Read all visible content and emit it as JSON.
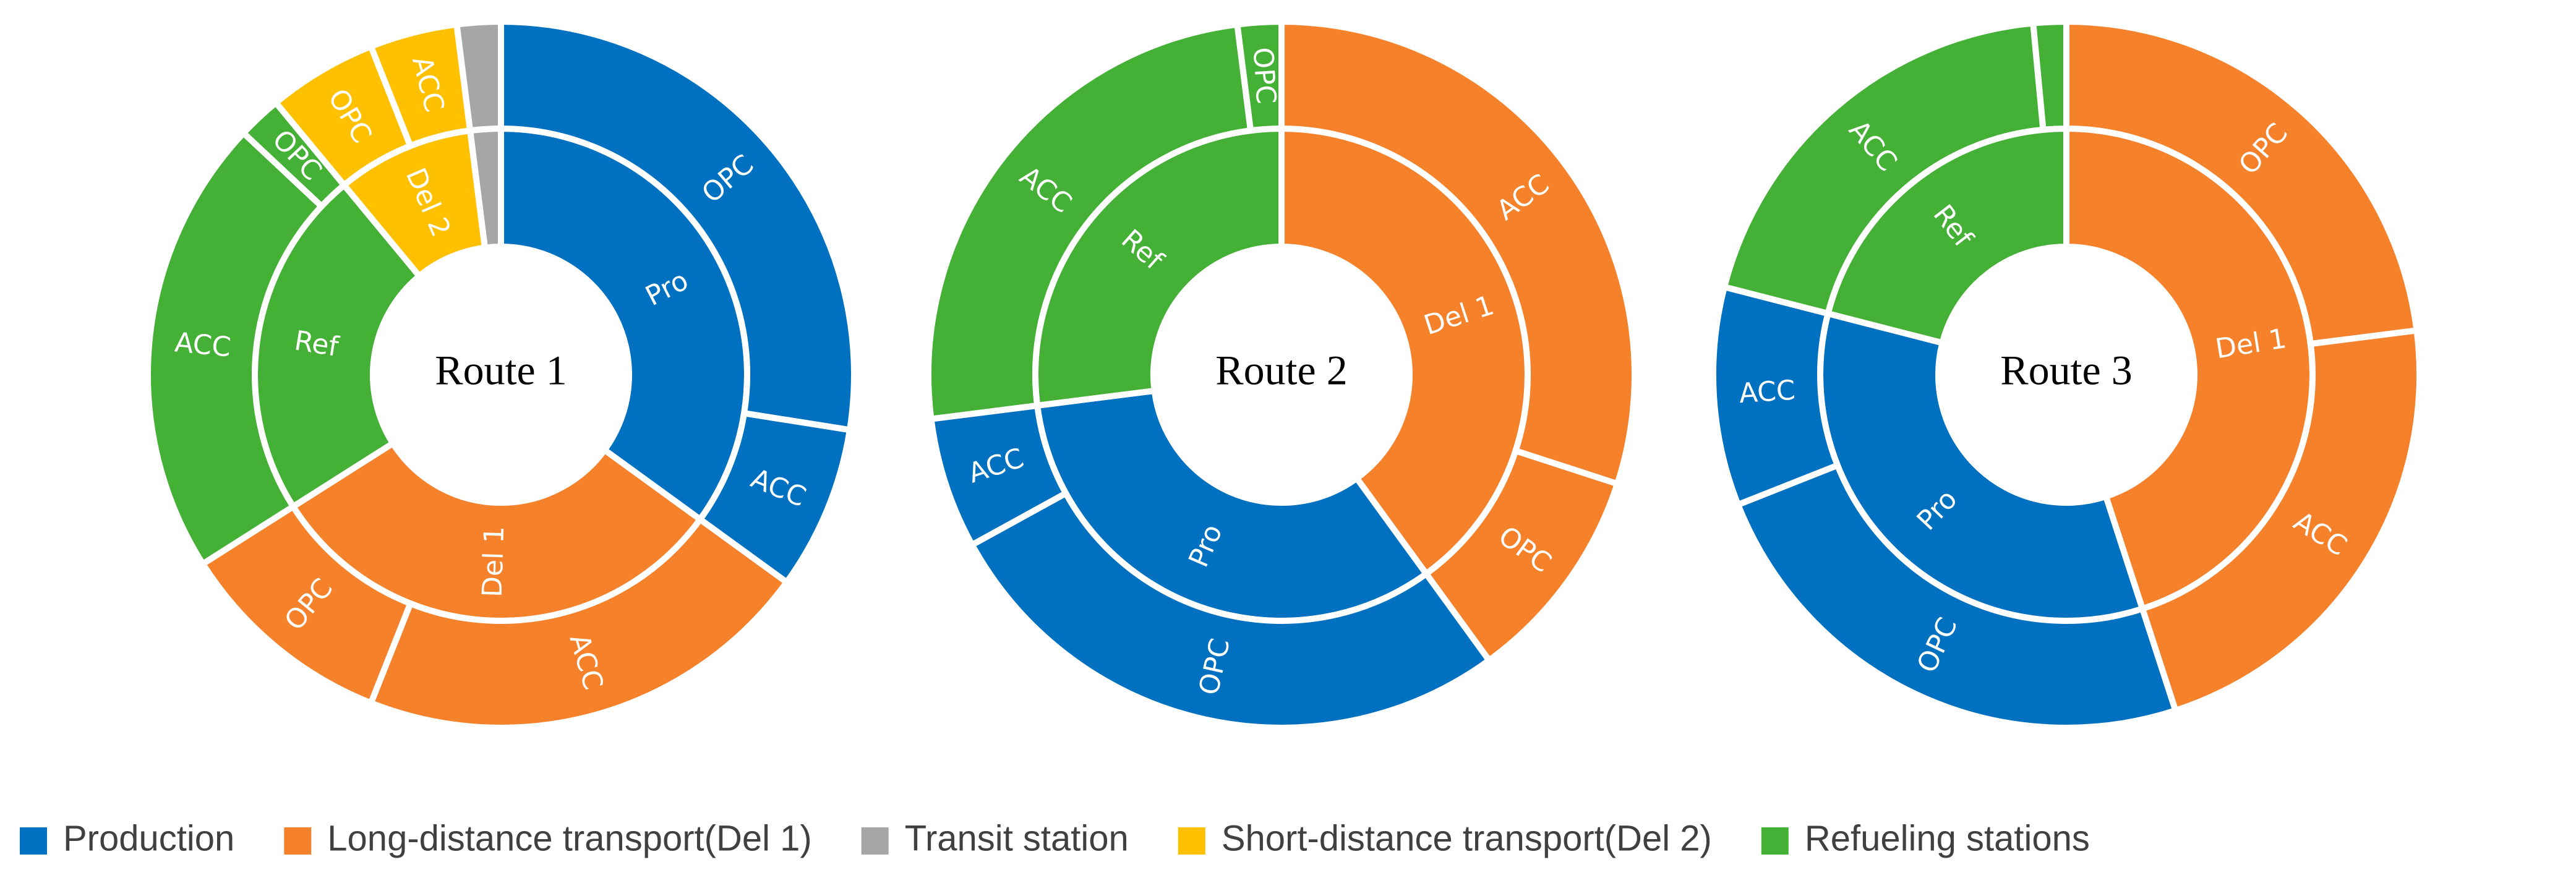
{
  "chart_data": [
    {
      "type": "sunburst",
      "title": "Route 1",
      "segments": [
        {
          "label": "Pro",
          "color": "#0070c0",
          "value": 35,
          "children": [
            {
              "label": "OPC",
              "value": 27.5
            },
            {
              "label": "ACC",
              "value": 7.5
            }
          ]
        },
        {
          "label": "Del 1",
          "color": "#f5812a",
          "value": 31,
          "children": [
            {
              "label": "ACC",
              "value": 21
            },
            {
              "label": "OPC",
              "value": 10
            }
          ]
        },
        {
          "label": "Ref",
          "color": "#44b035",
          "value": 23,
          "children": [
            {
              "label": "ACC",
              "value": 21
            },
            {
              "label": "OPC",
              "value": 2
            }
          ]
        },
        {
          "label": "Del 2",
          "color": "#ffc000",
          "value": 9,
          "children": [
            {
              "label": "OPC",
              "value": 5
            },
            {
              "label": "ACC",
              "value": 4
            }
          ]
        },
        {
          "label": null,
          "color": "#a6a6a6",
          "value": 2,
          "children": [
            {
              "label": null,
              "value": 2
            }
          ]
        }
      ]
    },
    {
      "type": "sunburst",
      "title": "Route 2",
      "segments": [
        {
          "label": "Del 1",
          "color": "#f5812a",
          "value": 40,
          "children": [
            {
              "label": "ACC",
              "value": 30
            },
            {
              "label": "OPC",
              "value": 10
            }
          ]
        },
        {
          "label": "Pro",
          "color": "#0070c0",
          "value": 33,
          "children": [
            {
              "label": "OPC",
              "value": 27
            },
            {
              "label": "ACC",
              "value": 6
            }
          ]
        },
        {
          "label": "Ref",
          "color": "#44b035",
          "value": 27,
          "children": [
            {
              "label": "ACC",
              "value": 25
            },
            {
              "label": "OPC",
              "value": 2
            }
          ]
        }
      ]
    },
    {
      "type": "sunburst",
      "title": "Route 3",
      "segments": [
        {
          "label": "Del 1",
          "color": "#f5812a",
          "value": 45,
          "children": [
            {
              "label": "OPC",
              "value": 23
            },
            {
              "label": "ACC",
              "value": 22
            }
          ]
        },
        {
          "label": "Pro",
          "color": "#0070c0",
          "value": 34,
          "children": [
            {
              "label": "OPC",
              "value": 24
            },
            {
              "label": "ACC",
              "value": 10
            }
          ]
        },
        {
          "label": "Ref",
          "color": "#44b035",
          "value": 21,
          "children": [
            {
              "label": "ACC",
              "value": 19.5
            },
            {
              "label": null,
              "value": 1.5
            }
          ]
        }
      ]
    }
  ],
  "legend": [
    {
      "name": "Production",
      "color": "#0070c0"
    },
    {
      "name": "Long-distance transport(Del 1)",
      "color": "#f5812a"
    },
    {
      "name": "Transit station",
      "color": "#a6a6a6"
    },
    {
      "name": "Short-distance transport(Del 2)",
      "color": "#ffc000"
    },
    {
      "name": "Refueling stations",
      "color": "#44b035"
    }
  ]
}
